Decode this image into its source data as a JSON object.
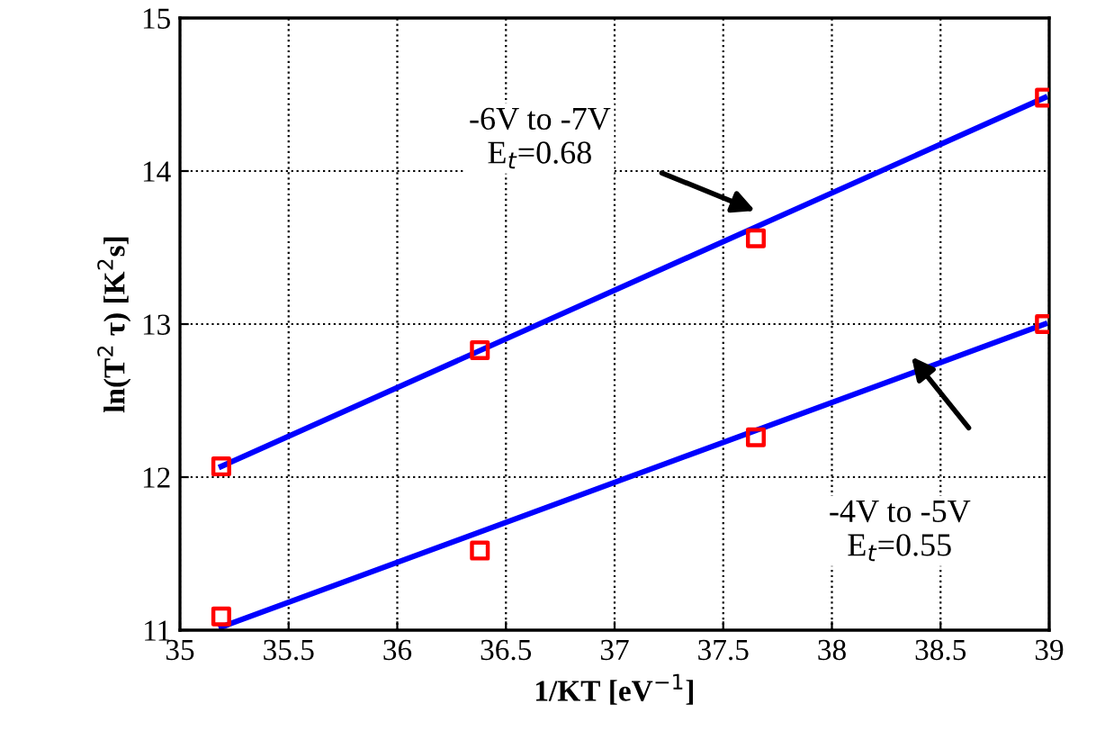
{
  "chart_data": {
    "type": "scatter",
    "xlabel": "1/KT [eV$^{−1}$]",
    "ylabel": "ln(T$^{2}$ τ) [K$^{2}$s]",
    "xlim": [
      35,
      39
    ],
    "ylim": [
      11,
      15
    ],
    "xticks": [
      35,
      35.5,
      36,
      36.5,
      37,
      37.5,
      38,
      38.5,
      39
    ],
    "yticks": [
      11,
      12,
      13,
      14,
      15
    ],
    "grid": true,
    "marker": "square",
    "series": [
      {
        "type": "line",
        "color": "#0000ff",
        "x": [
          35.19,
          38.98
        ],
        "values": [
          12.07,
          14.48
        ],
        "marker": "none",
        "line_style": "solid"
      },
      {
        "type": "line",
        "color": "#0000ff",
        "x": [
          35.19,
          38.98
        ],
        "values": [
          11.02,
          13.0
        ],
        "marker": "none",
        "line_style": "solid"
      },
      {
        "color": "#ff0000",
        "x": [
          35.19,
          36.38,
          37.65,
          38.98
        ],
        "values": [
          12.07,
          12.83,
          13.56,
          14.48
        ]
      },
      {
        "color": "#ff0000",
        "x": [
          35.19,
          36.38,
          37.65,
          38.98
        ],
        "values": [
          11.09,
          11.52,
          12.26,
          13.0
        ]
      }
    ],
    "annotations": [
      "-6V to -7V\nE$_{t}$=0.68",
      "-4V to -5V\nE$_{t}$=0.55"
    ]
  }
}
